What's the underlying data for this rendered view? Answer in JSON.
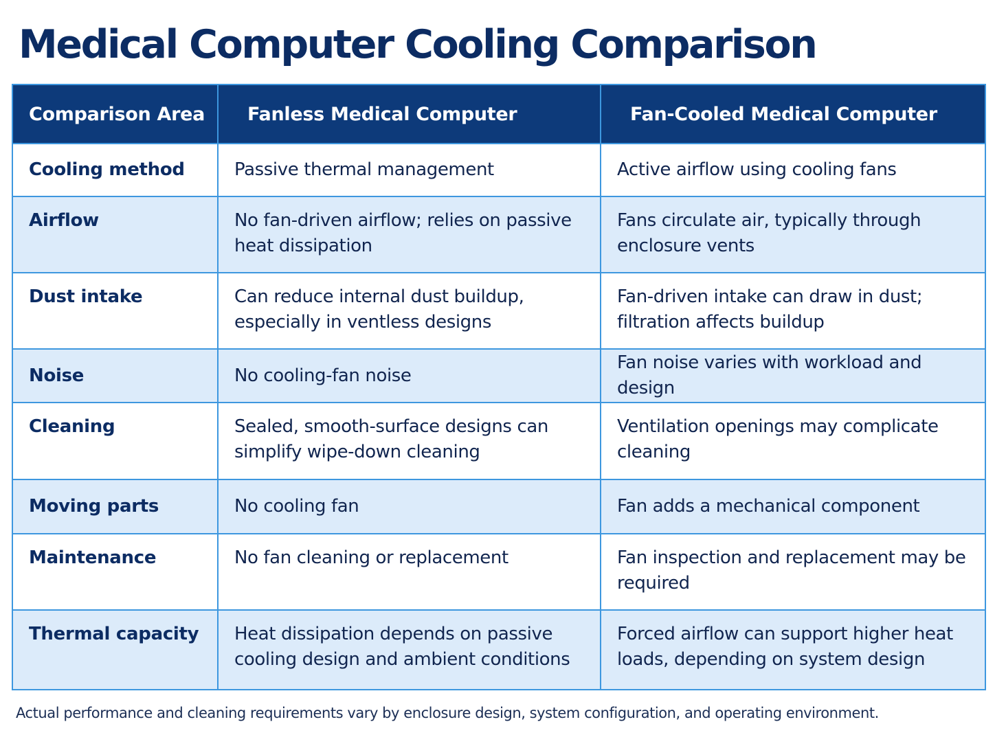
{
  "title": "Medical Computer Cooling Comparison",
  "table": {
    "headers": [
      "Comparison Area",
      "Fanless Medical Computer",
      "Fan-Cooled Medical Computer"
    ],
    "rows": [
      [
        "Cooling method",
        "Passive thermal management",
        "Active airflow using cooling fans"
      ],
      [
        "Airflow",
        "No fan-driven airflow; relies on passive heat dissipation",
        "Fans circulate air, typically through enclosure vents"
      ],
      [
        "Dust intake",
        "Can reduce internal dust buildup, especially in ventless designs",
        "Fan-driven intake can draw in dust; filtration affects buildup"
      ],
      [
        "Noise",
        "No cooling-fan noise",
        "Fan noise varies with workload and design"
      ],
      [
        "Cleaning",
        "Sealed, smooth-surface designs can simplify wipe-down cleaning",
        "Ventilation openings may complicate cleaning"
      ],
      [
        "Moving parts",
        "No cooling fan",
        "Fan adds a mechanical component"
      ],
      [
        "Maintenance",
        "No fan cleaning or replacement",
        "Fan inspection and replacement may be required"
      ],
      [
        "Thermal capacity",
        "Heat dissipation depends on passive cooling design and ambient conditions",
        "Forced airflow can support higher heat loads, depending on system design"
      ]
    ]
  },
  "footnote": "Actual performance and cleaning requirements vary by enclosure design, system configuration, and operating environment.",
  "colors": {
    "title": "#0c2c63",
    "header_bg": "#0d3a7a",
    "header_text": "#ffffff",
    "border": "#3d97df",
    "row_alt_bg": "#dcebfa"
  }
}
